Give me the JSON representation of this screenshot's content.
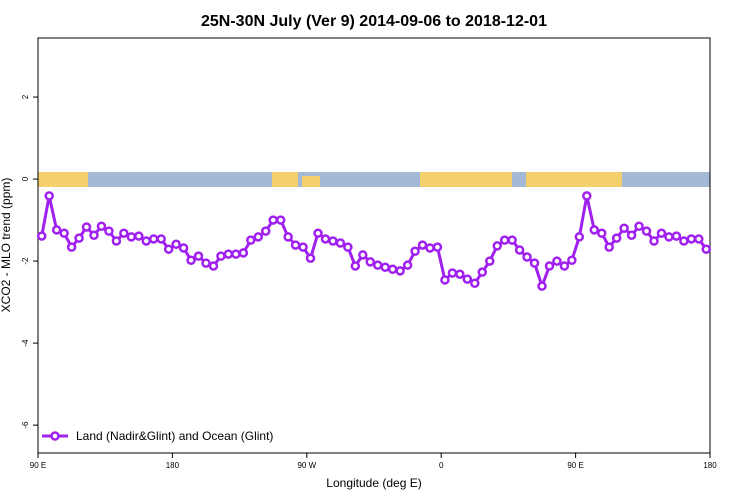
{
  "chart_data": {
    "type": "line",
    "title": "25N-30N July (Ver 9)   2014-09-06 to 2018-12-01",
    "xlabel": "Longitude (deg E)",
    "ylabel": "XCO2 - MLO trend (ppm)",
    "xlim": [
      90,
      540
    ],
    "ylim": [
      -6.68,
      3.44
    ],
    "xticks": [
      {
        "value": 90,
        "label": "90 E"
      },
      180,
      {
        "value": 270,
        "label": "90 W"
      },
      {
        "value": 360,
        "label": "0"
      },
      {
        "value": 450,
        "label": "90 E"
      },
      {
        "value": 540,
        "label": "180"
      }
    ],
    "yticks": [
      -6,
      -4,
      -2,
      0,
      2
    ],
    "legend": "bottom-left",
    "x": [
      92.5,
      97.5,
      102.5,
      107.5,
      112.5,
      117.5,
      122.5,
      127.5,
      132.5,
      137.5,
      142.5,
      147.5,
      152.5,
      157.5,
      162.5,
      167.5,
      172.5,
      177.5,
      182.5,
      187.5,
      192.5,
      197.5,
      202.5,
      207.5,
      212.5,
      217.5,
      222.5,
      227.5,
      232.5,
      237.5,
      242.5,
      247.5,
      252.5,
      257.5,
      262.5,
      267.5,
      272.5,
      277.5,
      282.5,
      287.5,
      292.5,
      297.5,
      302.5,
      307.5,
      312.5,
      317.5,
      322.5,
      327.5,
      332.5,
      337.5,
      342.5,
      347.5,
      352.5,
      357.5,
      362.5,
      367.5,
      372.5,
      377.5,
      382.5,
      387.5,
      392.5,
      397.5,
      402.5,
      407.5,
      412.5,
      417.5,
      422.5,
      427.5,
      432.5,
      437.5,
      442.5,
      447.5,
      452.5,
      457.5,
      462.5,
      467.5,
      472.5,
      477.5,
      482.5,
      487.5,
      492.5,
      497.5,
      502.5,
      507.5,
      512.5,
      517.5,
      522.5,
      527.5,
      532.5,
      537.5
    ],
    "series": [
      {
        "name": "Land (Nadir&Glint) and Ocean (Glint)",
        "color": "#a020f0",
        "values": [
          -1.39,
          -0.41,
          -1.24,
          -1.32,
          -1.66,
          -1.44,
          -1.17,
          -1.37,
          -1.15,
          -1.27,
          -1.51,
          -1.32,
          -1.41,
          -1.39,
          -1.51,
          -1.46,
          -1.46,
          -1.71,
          -1.59,
          -1.68,
          -1.98,
          -1.88,
          -2.05,
          -2.12,
          -1.88,
          -1.83,
          -1.83,
          -1.8,
          -1.49,
          -1.41,
          -1.27,
          -1.0,
          -1.0,
          -1.41,
          -1.61,
          -1.66,
          -1.93,
          -1.32,
          -1.46,
          -1.51,
          -1.56,
          -1.66,
          -2.12,
          -1.85,
          -2.02,
          -2.1,
          -2.15,
          -2.2,
          -2.24,
          -2.1,
          -1.76,
          -1.61,
          -1.68,
          -1.66,
          -2.46,
          -2.29,
          -2.32,
          -2.44,
          -2.54,
          -2.27,
          -2.0,
          -1.63,
          -1.49,
          -1.49,
          -1.73,
          -1.9,
          -2.05,
          -2.61,
          -2.12,
          -2.0,
          -2.12,
          -1.98,
          -1.41,
          -0.41,
          -1.24,
          -1.32,
          -1.66,
          -1.44,
          -1.2,
          -1.37,
          -1.15,
          -1.27,
          -1.51,
          -1.32,
          -1.41,
          -1.39,
          -1.51,
          -1.46,
          -1.46,
          -1.71
        ]
      }
    ]
  }
}
